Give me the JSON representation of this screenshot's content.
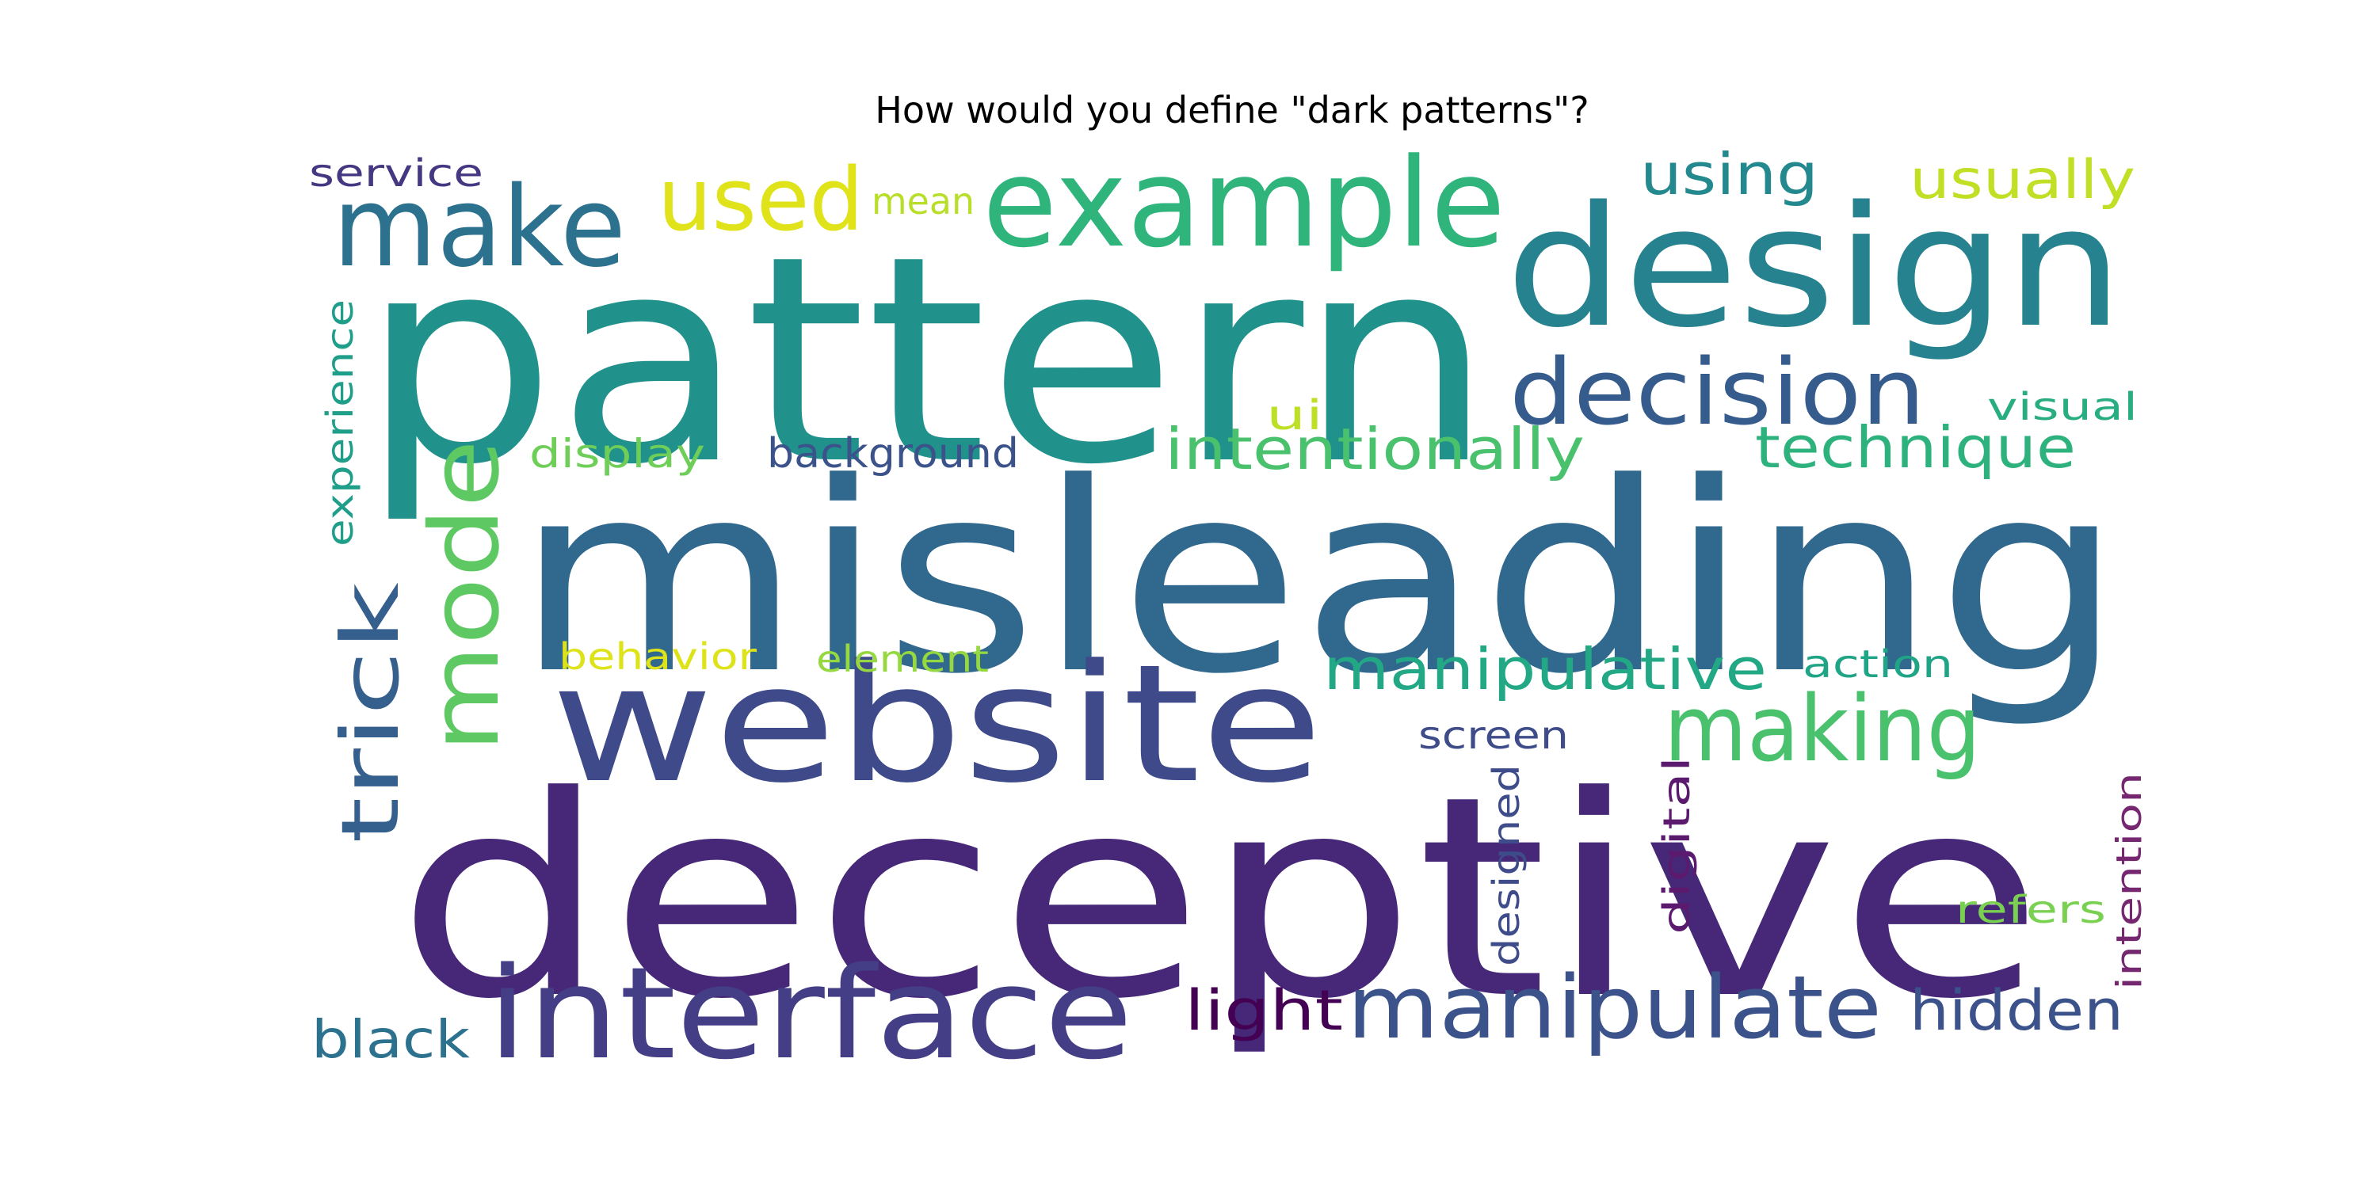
{
  "chart_data": {
    "type": "wordcloud",
    "title": "How would you define \"dark patterns\"?",
    "words": [
      {
        "text": "pattern",
        "color": "#21918c"
      },
      {
        "text": "misleading",
        "color": "#31688e"
      },
      {
        "text": "deceptive",
        "color": "#472878"
      },
      {
        "text": "design",
        "color": "#26828e"
      },
      {
        "text": "website",
        "color": "#3e4a89"
      },
      {
        "text": "example",
        "color": "#2fb47c"
      },
      {
        "text": "interface",
        "color": "#433e85"
      },
      {
        "text": "manipulate",
        "color": "#3b528b"
      },
      {
        "text": "decision",
        "color": "#365c8d"
      },
      {
        "text": "make",
        "color": "#2c718e"
      },
      {
        "text": "mode",
        "color": "#5ec962"
      },
      {
        "text": "used",
        "color": "#e0e31a"
      },
      {
        "text": "trick",
        "color": "#355f8d"
      },
      {
        "text": "making",
        "color": "#4ac16d"
      },
      {
        "text": "manipulative",
        "color": "#22a884"
      },
      {
        "text": "intentionally",
        "color": "#4ac16d"
      },
      {
        "text": "technique",
        "color": "#2db27d"
      },
      {
        "text": "using",
        "color": "#23898e"
      },
      {
        "text": "usually",
        "color": "#c0df25"
      },
      {
        "text": "hidden",
        "color": "#3b528b"
      },
      {
        "text": "light",
        "color": "#440154"
      },
      {
        "text": "black",
        "color": "#2c728e"
      },
      {
        "text": "background",
        "color": "#3b528b"
      },
      {
        "text": "display",
        "color": "#6ece58"
      },
      {
        "text": "experience",
        "color": "#1f9e89"
      },
      {
        "text": "service",
        "color": "#453781"
      },
      {
        "text": "mean",
        "color": "#b8de29"
      },
      {
        "text": "ui",
        "color": "#bddf26"
      },
      {
        "text": "visual",
        "color": "#27ad81"
      },
      {
        "text": "behavior",
        "color": "#dde318"
      },
      {
        "text": "element",
        "color": "#95d840"
      },
      {
        "text": "action",
        "color": "#20a486"
      },
      {
        "text": "screen",
        "color": "#3e4c8a"
      },
      {
        "text": "designed",
        "color": "#3e4c8a"
      },
      {
        "text": "digital",
        "color": "#5b1a6e"
      },
      {
        "text": "intention",
        "color": "#75276f"
      },
      {
        "text": "refers",
        "color": "#7ad151"
      }
    ]
  }
}
